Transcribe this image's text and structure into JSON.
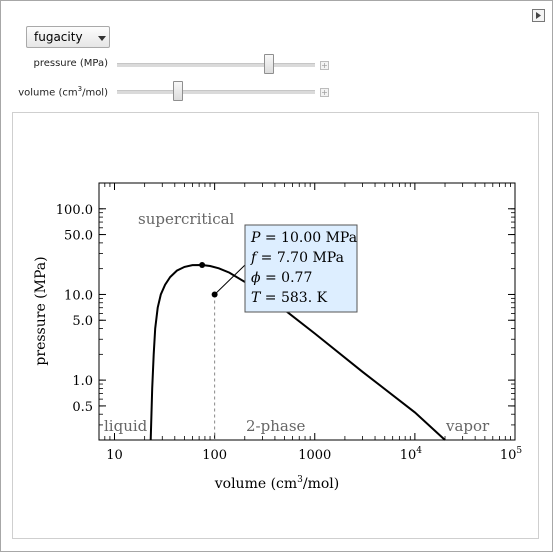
{
  "controls": {
    "function_select": {
      "value": "fugacity"
    },
    "pressure_slider": {
      "label": "pressure (MPa)",
      "level": 0.78
    },
    "volume_slider": {
      "label_main": "volume (cm",
      "label_sup": "3",
      "label_end": "/mol)",
      "level": 0.3
    }
  },
  "chart_data": {
    "type": "line",
    "xscale": "log",
    "yscale": "log",
    "xlim": [
      7,
      100000
    ],
    "ylim": [
      0.2,
      200
    ],
    "xlabel_main": "volume (cm",
    "xlabel_sup": "3",
    "xlabel_end": "/mol)",
    "ylabel": "pressure (MPa)",
    "x_ticks": [
      {
        "v": 10,
        "label": "10"
      },
      {
        "v": 100,
        "label": "100"
      },
      {
        "v": 1000,
        "label": "1000"
      }
    ],
    "x_power_ticks": [
      {
        "v": 10000,
        "base": "10",
        "exp": "4"
      },
      {
        "v": 100000,
        "base": "10",
        "exp": "5"
      }
    ],
    "y_ticks": [
      {
        "v": 0.5,
        "label": "0.5"
      },
      {
        "v": 1.0,
        "label": "1.0"
      },
      {
        "v": 5.0,
        "label": "5.0"
      },
      {
        "v": 10.0,
        "label": "10.0"
      },
      {
        "v": 50.0,
        "label": "50.0"
      },
      {
        "v": 100.0,
        "label": "100.0"
      }
    ],
    "region_labels": {
      "supercritical": "supercritical",
      "liquid": "liquid",
      "two_phase": "2-phase",
      "vapor": "vapor"
    },
    "curve": [
      [
        23,
        0.2
      ],
      [
        23.8,
        0.8
      ],
      [
        24.6,
        2
      ],
      [
        25.5,
        4
      ],
      [
        27,
        7
      ],
      [
        29,
        10
      ],
      [
        32,
        13
      ],
      [
        36,
        16
      ],
      [
        42,
        19
      ],
      [
        50,
        21
      ],
      [
        60,
        22
      ],
      [
        75,
        22.1
      ],
      [
        90,
        21.5
      ],
      [
        110,
        20.2
      ],
      [
        140,
        18
      ],
      [
        200,
        14
      ],
      [
        300,
        10
      ],
      [
        500,
        6.6
      ],
      [
        1000,
        3.5
      ],
      [
        3000,
        1.25
      ],
      [
        10000,
        0.42
      ],
      [
        20000,
        0.2
      ]
    ],
    "critical_point": {
      "x": 75,
      "y": 22.1
    },
    "state_point": {
      "x": 100,
      "y": 10.0
    },
    "tooltip": {
      "line1_var": "P",
      "line1_rest": " = 10.00 MPa",
      "line2_var": "f",
      "line2_rest": " = 7.70 MPa",
      "line3_var": "ϕ",
      "line3_rest": " = 0.77",
      "line4_var": "T",
      "line4_rest": " = 583. K"
    }
  }
}
